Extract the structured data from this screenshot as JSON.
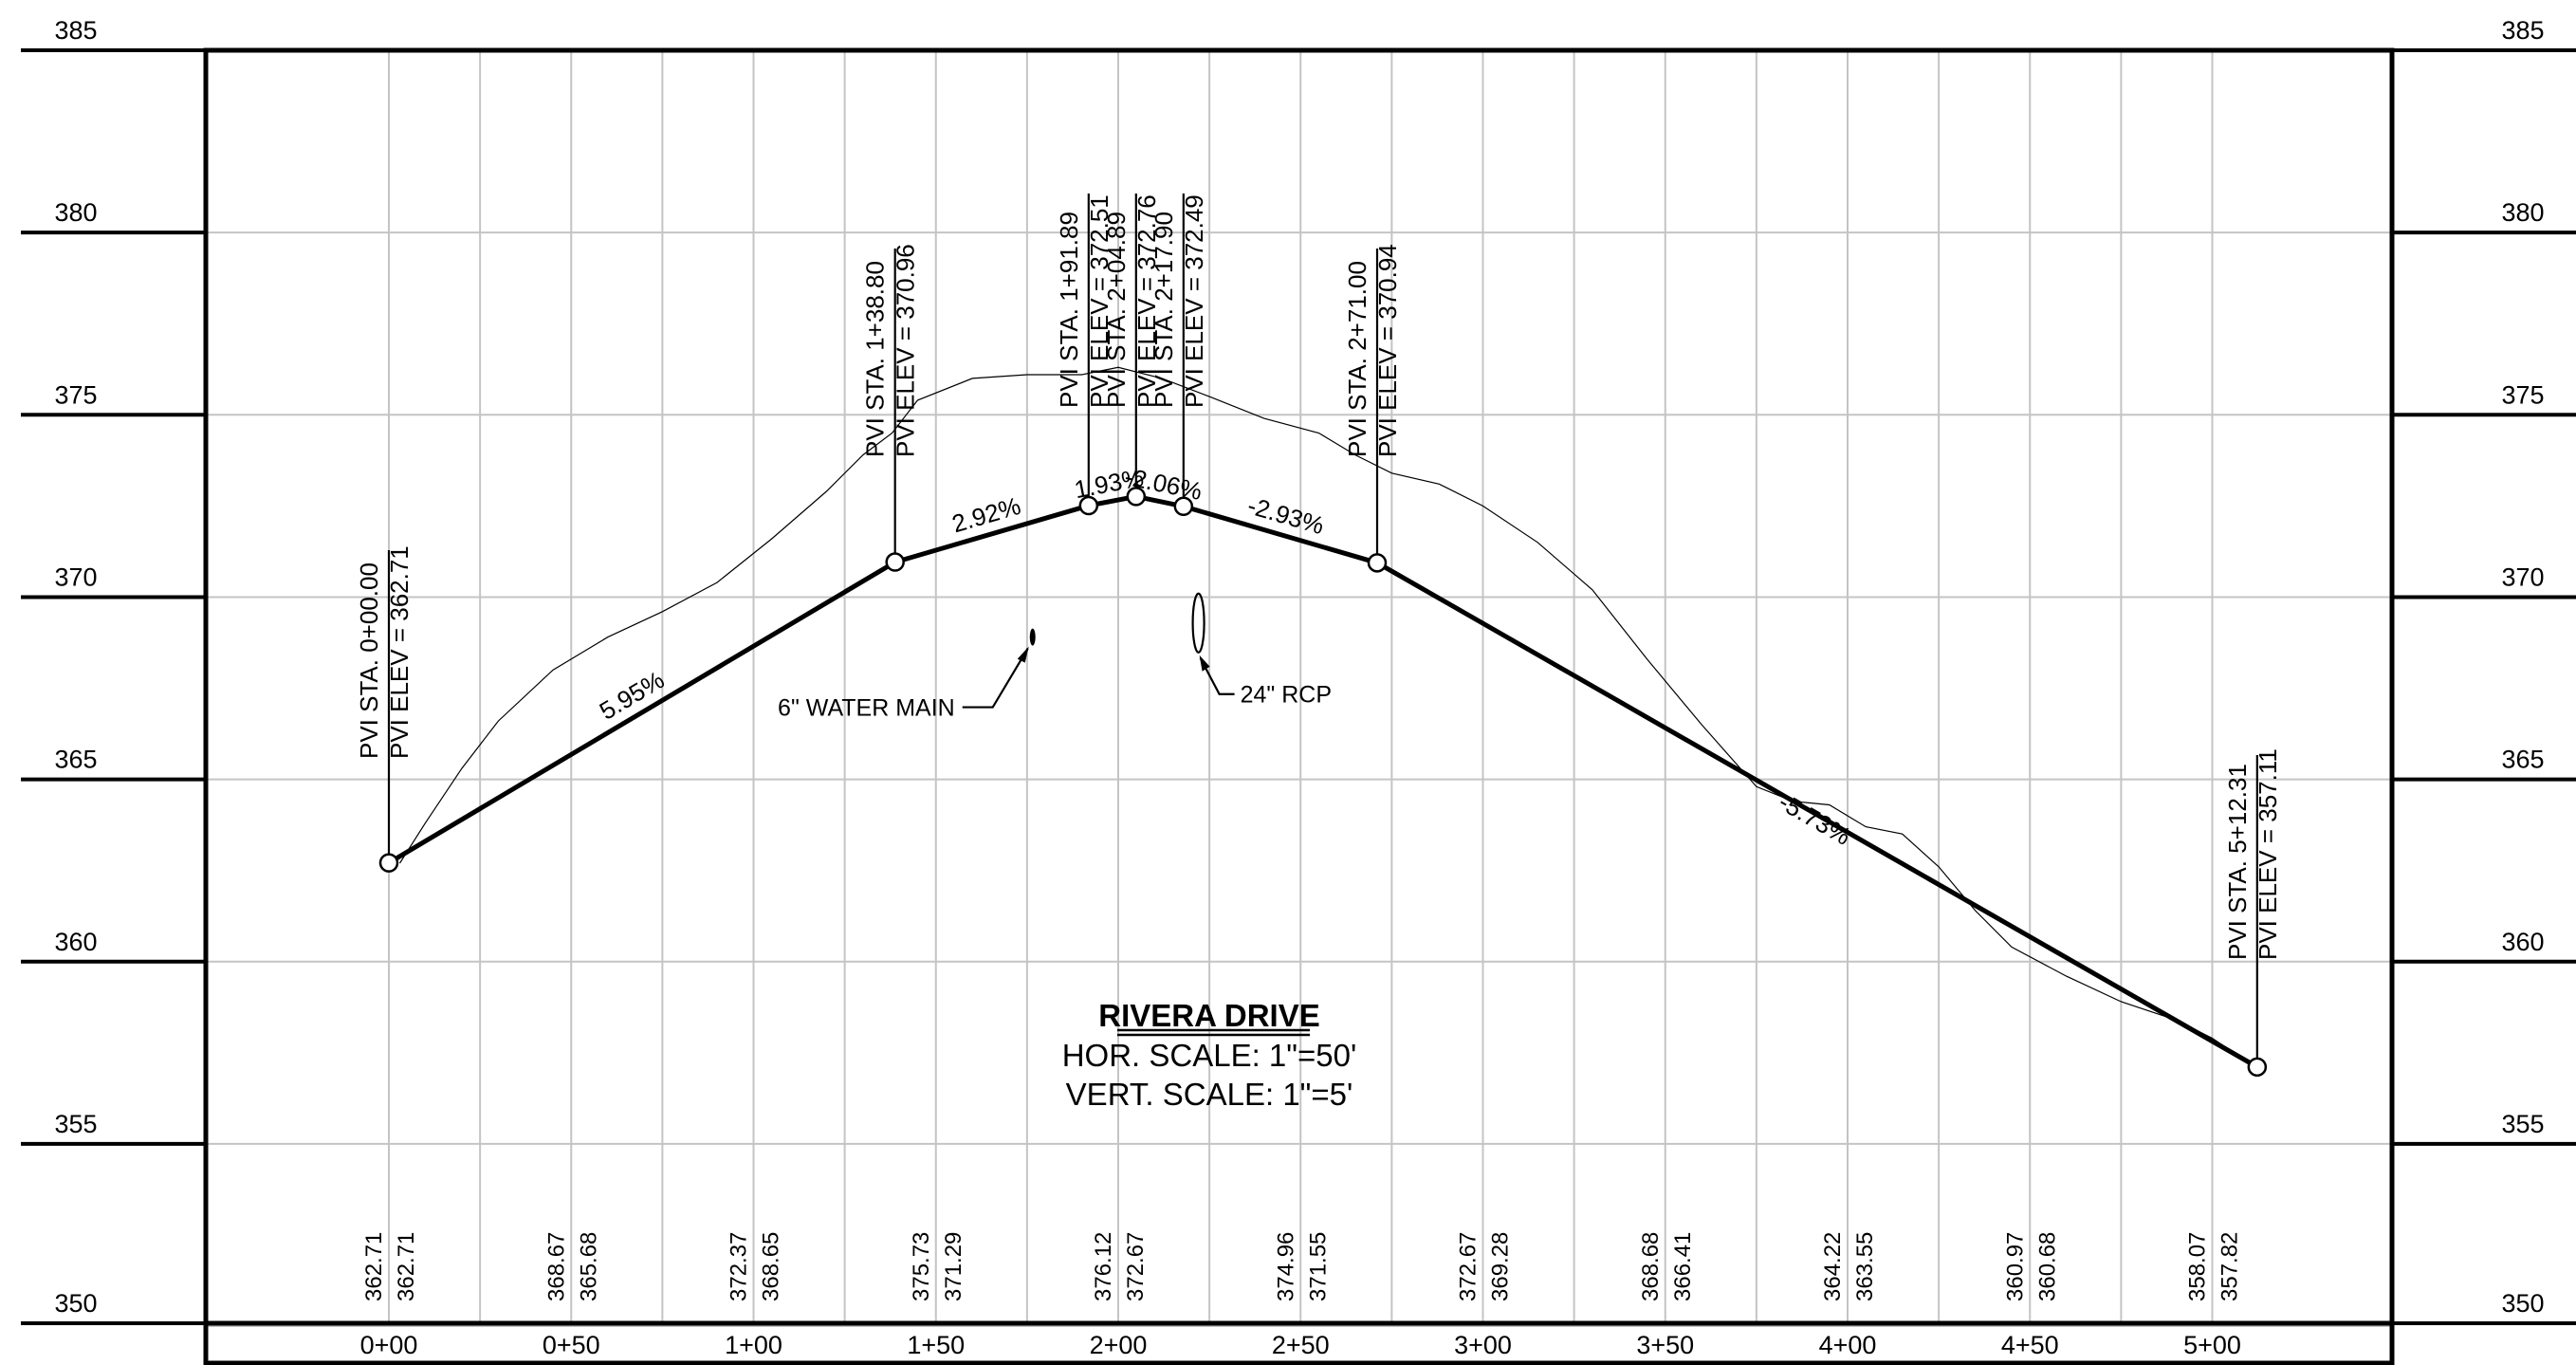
{
  "profile": {
    "title": "RIVERA DRIVE",
    "hor_scale": "HOR. SCALE: 1\"=50'",
    "vert_scale": "VERT. SCALE: 1\"=5'"
  },
  "elevation_labels": [
    "385",
    "380",
    "375",
    "370",
    "365",
    "360",
    "355",
    "350"
  ],
  "elevation_values": [
    385,
    380,
    375,
    370,
    365,
    360,
    355,
    350
  ],
  "station_labels": [
    "0+00",
    "0+50",
    "1+00",
    "1+50",
    "2+00",
    "2+50",
    "3+00",
    "3+50",
    "4+00",
    "4+50",
    "5+00"
  ],
  "station_values": [
    0,
    50,
    100,
    150,
    200,
    250,
    300,
    350,
    400,
    450,
    500
  ],
  "existing_elevations": [
    {
      "a": "362.71",
      "b": "362.71"
    },
    {
      "a": "368.67",
      "b": "365.68"
    },
    {
      "a": "372.37",
      "b": "368.65"
    },
    {
      "a": "375.73",
      "b": "371.29"
    },
    {
      "a": "376.12",
      "b": "372.67"
    },
    {
      "a": "374.96",
      "b": "371.55"
    },
    {
      "a": "372.67",
      "b": "369.28"
    },
    {
      "a": "368.68",
      "b": "366.41"
    },
    {
      "a": "364.22",
      "b": "363.55"
    },
    {
      "a": "360.97",
      "b": "360.68"
    },
    {
      "a": "358.07",
      "b": "357.82"
    }
  ],
  "pvis": [
    {
      "station": 0,
      "elev": 362.71,
      "sta_label": "PVI STA. 0+00.00",
      "elev_label": "PVI ELEV = 362.71"
    },
    {
      "station": 138.8,
      "elev": 370.96,
      "sta_label": "PVI STA. 1+38.80",
      "elev_label": "PVI ELEV = 370.96"
    },
    {
      "station": 191.89,
      "elev": 372.51,
      "sta_label": "PVI STA. 1+91.89",
      "elev_label": "PVI ELEV = 372.51"
    },
    {
      "station": 204.89,
      "elev": 372.76,
      "sta_label": "PVI STA. 2+04.89",
      "elev_label": "PVI ELEV = 372.76"
    },
    {
      "station": 217.9,
      "elev": 372.49,
      "sta_label": "PVI STA. 2+17.90",
      "elev_label": "PVI ELEV = 372.49"
    },
    {
      "station": 271.0,
      "elev": 370.94,
      "sta_label": "PVI STA. 2+71.00",
      "elev_label": "PVI ELEV = 370.94"
    },
    {
      "station": 512.31,
      "elev": 357.11,
      "sta_label": "PVI STA. 5+12.31",
      "elev_label": "PVI ELEV = 357.11"
    }
  ],
  "grades": [
    "5.95%",
    "2.92%",
    "1.93%",
    "-2.06%",
    "-2.93%",
    "-5.73%"
  ],
  "existing_ground": [
    [
      3,
      362.7
    ],
    [
      10,
      363.8
    ],
    [
      20,
      365.3
    ],
    [
      30,
      366.6
    ],
    [
      45,
      368.0
    ],
    [
      60,
      368.9
    ],
    [
      75,
      369.6
    ],
    [
      90,
      370.4
    ],
    [
      105,
      371.6
    ],
    [
      120,
      372.9
    ],
    [
      130,
      373.9
    ],
    [
      138,
      374.5
    ],
    [
      145,
      375.4
    ],
    [
      160,
      376.0
    ],
    [
      175,
      376.1
    ],
    [
      190,
      376.1
    ],
    [
      200,
      376.3
    ],
    [
      212,
      376.0
    ],
    [
      225,
      375.5
    ],
    [
      240,
      374.9
    ],
    [
      255,
      374.5
    ],
    [
      265,
      373.9
    ],
    [
      275,
      373.4
    ],
    [
      288,
      373.1
    ],
    [
      300,
      372.5
    ],
    [
      315,
      371.5
    ],
    [
      330,
      370.2
    ],
    [
      345,
      368.3
    ],
    [
      360,
      366.5
    ],
    [
      375,
      364.8
    ],
    [
      385,
      364.4
    ],
    [
      395,
      364.3
    ],
    [
      405,
      363.7
    ],
    [
      415,
      363.5
    ],
    [
      425,
      362.6
    ],
    [
      435,
      361.4
    ],
    [
      445,
      360.4
    ],
    [
      460,
      359.6
    ],
    [
      475,
      358.9
    ],
    [
      490,
      358.4
    ],
    [
      500,
      357.9
    ],
    [
      512,
      357.1
    ]
  ],
  "utilities": [
    {
      "label": "6\" WATER MAIN",
      "station": 176,
      "elev": 368.8
    },
    {
      "label": "24\" RCP",
      "station": 222,
      "elev": 368.9
    }
  ]
}
